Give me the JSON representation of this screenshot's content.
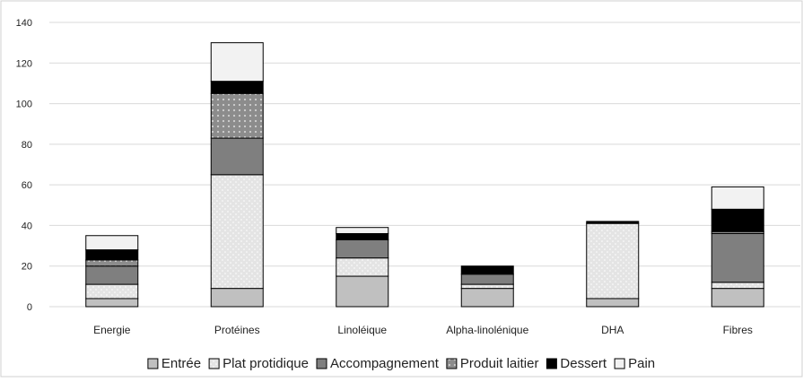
{
  "chart_data": {
    "type": "bar",
    "stacked": true,
    "title": "",
    "xlabel": "",
    "ylabel": "",
    "ylim": [
      0,
      140
    ],
    "yticks": [
      0,
      20,
      40,
      60,
      80,
      100,
      120,
      140
    ],
    "grid": true,
    "legend_position": "bottom",
    "categories": [
      "Energie",
      "Protéines",
      "Linoléique",
      "Alpha-linolénique",
      "DHA",
      "Fibres"
    ],
    "series": [
      {
        "name": "Entrée",
        "color": "#c0c0c0",
        "pattern": "solid",
        "values": [
          4,
          9,
          15,
          9,
          4,
          9
        ]
      },
      {
        "name": "Plat protidique",
        "color": "#e4e4e4",
        "pattern": "dotted-light",
        "values": [
          7,
          56,
          9,
          2,
          37,
          3
        ]
      },
      {
        "name": "Accompagnement",
        "color": "#7f7f7f",
        "pattern": "solid",
        "values": [
          9,
          18,
          9,
          5,
          0,
          24
        ]
      },
      {
        "name": "Produit laitier",
        "color": "#8c8c8c",
        "pattern": "dotted-dark",
        "values": [
          3,
          22,
          0,
          0,
          0,
          1
        ]
      },
      {
        "name": "Dessert",
        "color": "#000000",
        "pattern": "solid",
        "values": [
          5,
          6,
          3,
          4,
          1,
          11
        ]
      },
      {
        "name": "Pain",
        "color": "#f2f2f2",
        "pattern": "solid",
        "values": [
          7,
          19,
          3,
          0,
          0,
          11
        ]
      }
    ]
  }
}
